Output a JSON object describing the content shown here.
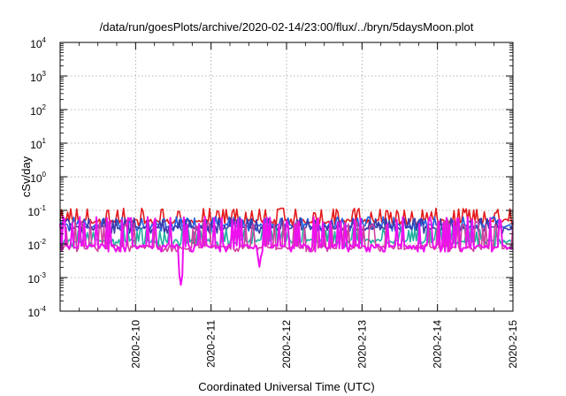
{
  "chart_data": {
    "type": "line",
    "title": "/data/run/goesPlots/archive/2020-02-14/23:00/flux/../bryn/5daysMoon.plot",
    "xlabel": "Coordinated Universal Time (UTC)",
    "ylabel": "cSv/day",
    "x_range": [
      "2020-02-09 00:00",
      "2020-02-15 00:00"
    ],
    "x_tick_labels": [
      "2020-2-10",
      "2020-2-11",
      "2020-2-12",
      "2020-2-13",
      "2020-2-14",
      "2020-2-15"
    ],
    "y_scale": "log",
    "ylim": [
      0.0001,
      10000
    ],
    "y_tick_labels": [
      {
        "base": "10",
        "exp": "4"
      },
      {
        "base": "10",
        "exp": "3"
      },
      {
        "base": "10",
        "exp": "2"
      },
      {
        "base": "10",
        "exp": "1"
      },
      {
        "base": "10",
        "exp": "0"
      },
      {
        "base": "10",
        "exp": "-1"
      },
      {
        "base": "10",
        "exp": "-2"
      },
      {
        "base": "10",
        "exp": "-3"
      },
      {
        "base": "10",
        "exp": "-4"
      }
    ],
    "grid": true,
    "series": [
      {
        "color": "#e41a1c",
        "baseline": 0.048,
        "spike_max": 0.115,
        "dip_min": 0.035
      },
      {
        "color": "#1f62e0",
        "baseline": 0.035,
        "spike_max": 0.065,
        "dip_min": 0.012
      },
      {
        "color": "#3a3aa8",
        "baseline": 0.03,
        "spike_max": 0.06,
        "dip_min": 0.012
      },
      {
        "color": "#20b0a0",
        "baseline": 0.012,
        "spike_max": 0.03,
        "dip_min": 0.007
      },
      {
        "color": "#d040a0",
        "baseline": 0.008,
        "spike_max": 0.05,
        "dip_min": 0.006
      },
      {
        "color": "#ee10ee",
        "baseline": 0.0085,
        "spike_max": 0.065,
        "dip_min": 0.0006
      }
    ]
  }
}
